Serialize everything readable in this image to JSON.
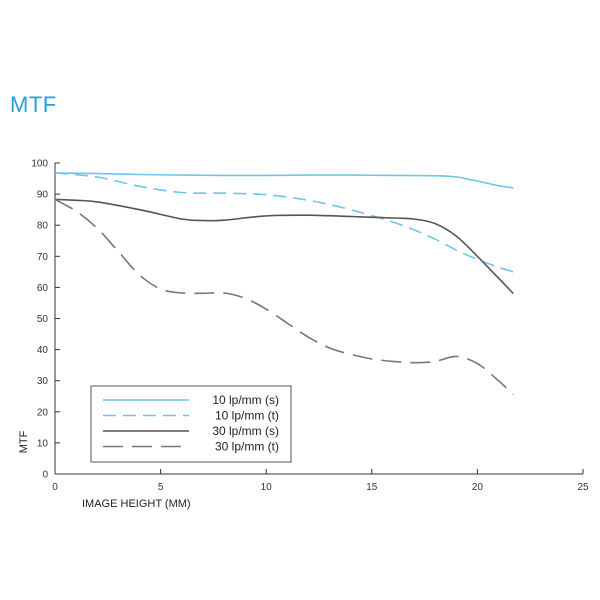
{
  "chart_data": {
    "type": "line",
    "title": "MTF",
    "xlabel": "IMAGE HEIGHT (MM)",
    "ylabel": "MTF",
    "xlim": [
      0,
      25
    ],
    "ylim": [
      0,
      100
    ],
    "xticks": [
      0,
      5,
      10,
      15,
      20,
      25
    ],
    "yticks": [
      0,
      10,
      20,
      30,
      40,
      50,
      60,
      70,
      80,
      90,
      100
    ],
    "grid": false,
    "legend_position": "bottom-left",
    "series": [
      {
        "name": "10 lp/mm (s)",
        "color": "#6cc7ea",
        "dash": "solid",
        "x": [
          0,
          2,
          4,
          6,
          8,
          10,
          12,
          14,
          16,
          18,
          19,
          20,
          21,
          21.7
        ],
        "y": [
          96.8,
          96.6,
          96.3,
          96.1,
          96.0,
          96.0,
          96.1,
          96.1,
          96.0,
          95.9,
          95.5,
          94.2,
          92.7,
          92.0
        ]
      },
      {
        "name": "10 lp/mm (t)",
        "color": "#6cc7ea",
        "dash": "dashed",
        "x": [
          0,
          2,
          4,
          6,
          8,
          10,
          12,
          14,
          16,
          17,
          18,
          19,
          20,
          21,
          21.7
        ],
        "y": [
          96.8,
          95.5,
          92.5,
          90.5,
          90.3,
          89.8,
          88.0,
          85.0,
          81.0,
          78.5,
          75.5,
          72.0,
          69.0,
          66.5,
          65.0
        ]
      },
      {
        "name": "30 lp/mm (s)",
        "color": "#555555",
        "dash": "solid",
        "x": [
          0,
          1,
          2,
          4,
          6,
          7,
          8,
          10,
          12,
          14,
          16,
          17,
          18,
          19,
          20,
          21,
          21.7
        ],
        "y": [
          88.3,
          88.0,
          87.5,
          85.0,
          82.0,
          81.5,
          81.6,
          83.0,
          83.2,
          82.8,
          82.3,
          82.0,
          80.5,
          76.5,
          70.0,
          63.0,
          58.0
        ]
      },
      {
        "name": "30 lp/mm (t)",
        "color": "#777777",
        "dash": "longdash",
        "x": [
          0,
          1,
          2,
          3,
          4,
          5,
          6,
          7,
          8,
          9,
          10,
          11,
          12,
          13,
          14,
          15,
          16,
          17,
          18,
          19,
          20,
          21,
          21.7
        ],
        "y": [
          88.3,
          84.5,
          79.0,
          71.5,
          64.0,
          59.5,
          58.2,
          58.1,
          58.2,
          56.5,
          53.0,
          48.5,
          44.0,
          40.5,
          38.5,
          37.0,
          36.2,
          35.8,
          36.2,
          37.8,
          35.5,
          30.0,
          25.5
        ]
      }
    ]
  }
}
